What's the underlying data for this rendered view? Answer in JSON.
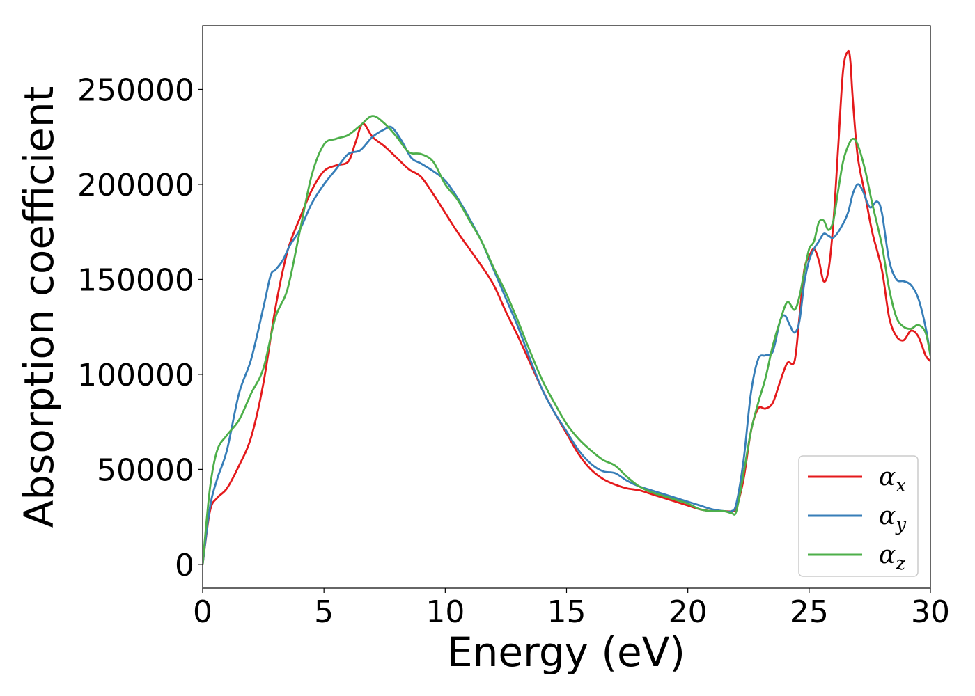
{
  "chart_data": {
    "type": "line",
    "title": "",
    "xlabel": "Energy (eV)",
    "ylabel": "Absorption coefficient",
    "xlim": [
      0,
      30
    ],
    "ylim": [
      -12500,
      283500
    ],
    "xticks": [
      0,
      5,
      10,
      15,
      20,
      25,
      30
    ],
    "yticks": [
      0,
      50000,
      100000,
      150000,
      200000,
      250000
    ],
    "grid": false,
    "legend": {
      "position": "bottom-right"
    },
    "series": [
      {
        "name": "α",
        "subscript": "x",
        "color": "#e41a1c",
        "x": [
          0,
          0.3,
          0.6,
          1.0,
          1.5,
          2.0,
          2.5,
          3.0,
          3.5,
          4.0,
          4.5,
          5.0,
          5.5,
          6.0,
          6.3,
          6.6,
          7.0,
          7.5,
          8.0,
          8.5,
          9.0,
          9.5,
          10.0,
          10.5,
          11.0,
          11.5,
          12.0,
          12.5,
          13.0,
          13.5,
          14.0,
          14.5,
          15.0,
          15.5,
          16.0,
          16.5,
          17.0,
          17.5,
          18.0,
          18.5,
          19.0,
          19.5,
          20.0,
          20.5,
          21.0,
          21.5,
          21.8,
          22.0,
          22.3,
          22.6,
          22.9,
          23.2,
          23.5,
          23.8,
          24.1,
          24.4,
          24.6,
          24.8,
          25.0,
          25.2,
          25.4,
          25.6,
          25.8,
          26.0,
          26.2,
          26.4,
          26.6,
          26.7,
          26.8,
          27.0,
          27.3,
          27.6,
          28.0,
          28.3,
          28.6,
          28.9,
          29.2,
          29.5,
          29.8,
          30.0
        ],
        "y": [
          0,
          28000,
          35000,
          40000,
          52000,
          67000,
          95000,
          135000,
          165000,
          182000,
          197000,
          207000,
          210000,
          212000,
          222000,
          232000,
          225000,
          220000,
          214000,
          208000,
          204000,
          195000,
          185000,
          175000,
          166000,
          157000,
          147000,
          133000,
          120000,
          106000,
          92000,
          80000,
          69000,
          58000,
          50000,
          45000,
          42000,
          40000,
          39000,
          37000,
          35000,
          33000,
          31000,
          29000,
          28000,
          28000,
          28000,
          30000,
          45000,
          70000,
          82000,
          82000,
          85000,
          96000,
          106000,
          107000,
          130000,
          155000,
          162000,
          166000,
          160000,
          149000,
          155000,
          180000,
          220000,
          260000,
          270000,
          265000,
          245000,
          215000,
          195000,
          175000,
          155000,
          130000,
          120000,
          118000,
          123000,
          120000,
          110000,
          107000
        ]
      },
      {
        "name": "α",
        "subscript": "y",
        "color": "#377eb8",
        "x": [
          0,
          0.3,
          0.6,
          1.0,
          1.5,
          2.0,
          2.5,
          2.8,
          3.0,
          3.3,
          3.6,
          4.0,
          4.5,
          5.0,
          5.5,
          6.0,
          6.5,
          7.0,
          7.5,
          7.8,
          8.2,
          8.6,
          9.0,
          9.5,
          10.0,
          10.5,
          11.0,
          11.5,
          12.0,
          12.5,
          13.0,
          13.5,
          14.0,
          14.5,
          15.0,
          15.5,
          16.0,
          16.5,
          17.0,
          17.5,
          18.0,
          18.5,
          19.0,
          19.5,
          20.0,
          20.5,
          21.0,
          21.5,
          21.8,
          22.0,
          22.3,
          22.6,
          22.9,
          23.2,
          23.5,
          23.8,
          24.0,
          24.2,
          24.4,
          24.6,
          24.8,
          25.0,
          25.2,
          25.4,
          25.6,
          25.8,
          26.0,
          26.3,
          26.6,
          26.8,
          27.0,
          27.2,
          27.5,
          27.8,
          28.0,
          28.3,
          28.6,
          28.9,
          29.2,
          29.5,
          29.8,
          30.0
        ],
        "y": [
          0,
          30000,
          45000,
          60000,
          90000,
          108000,
          135000,
          152000,
          155000,
          160000,
          168000,
          176000,
          190000,
          200000,
          208000,
          216000,
          218000,
          225000,
          229000,
          230000,
          223000,
          214000,
          211000,
          207000,
          202000,
          193000,
          182000,
          170000,
          155000,
          140000,
          125000,
          108000,
          92000,
          80000,
          70000,
          60000,
          53000,
          49000,
          48000,
          44000,
          41000,
          39000,
          37000,
          35000,
          33000,
          31000,
          29000,
          28000,
          28000,
          32000,
          55000,
          90000,
          108000,
          110000,
          112000,
          128000,
          131000,
          126000,
          122000,
          128000,
          148000,
          160000,
          166000,
          170000,
          174000,
          173000,
          172000,
          177000,
          185000,
          195000,
          200000,
          197000,
          188000,
          191000,
          185000,
          160000,
          150000,
          149000,
          147000,
          140000,
          125000,
          110000
        ]
      },
      {
        "name": "α",
        "subscript": "z",
        "color": "#4daf4a",
        "x": [
          0,
          0.3,
          0.6,
          1.0,
          1.5,
          2.0,
          2.5,
          3.0,
          3.5,
          4.0,
          4.5,
          5.0,
          5.5,
          6.0,
          6.5,
          7.0,
          7.5,
          8.0,
          8.5,
          9.0,
          9.5,
          10.0,
          10.5,
          11.0,
          11.5,
          12.0,
          12.5,
          13.0,
          13.5,
          14.0,
          14.5,
          15.0,
          15.5,
          16.0,
          16.5,
          17.0,
          17.5,
          18.0,
          18.5,
          19.0,
          19.5,
          20.0,
          20.5,
          21.0,
          21.5,
          21.8,
          22.0,
          22.3,
          22.6,
          22.9,
          23.2,
          23.5,
          23.8,
          24.1,
          24.4,
          24.6,
          24.8,
          25.0,
          25.2,
          25.4,
          25.6,
          25.8,
          26.0,
          26.2,
          26.4,
          26.6,
          26.8,
          27.0,
          27.3,
          27.6,
          28.0,
          28.3,
          28.6,
          28.9,
          29.2,
          29.5,
          29.8,
          30.0
        ],
        "y": [
          0,
          40000,
          60000,
          68000,
          76000,
          90000,
          103000,
          130000,
          145000,
          175000,
          205000,
          221000,
          224000,
          226000,
          231000,
          236000,
          232000,
          225000,
          217000,
          216000,
          212000,
          200000,
          192000,
          181000,
          170000,
          156000,
          143000,
          128000,
          112000,
          97000,
          85000,
          74000,
          66000,
          60000,
          55000,
          52000,
          46000,
          41000,
          38000,
          36000,
          34000,
          32000,
          29000,
          28000,
          28000,
          27000,
          28000,
          48000,
          70000,
          85000,
          98000,
          115000,
          128000,
          138000,
          134000,
          141000,
          154000,
          166000,
          170000,
          180000,
          181000,
          176000,
          181000,
          197000,
          212000,
          220000,
          224000,
          221000,
          208000,
          190000,
          168000,
          145000,
          130000,
          125000,
          124000,
          126000,
          122000,
          110000
        ]
      }
    ]
  }
}
